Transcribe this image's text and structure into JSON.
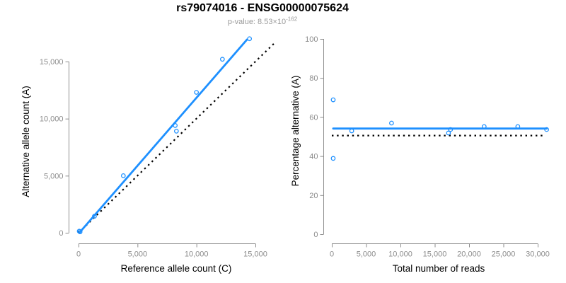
{
  "header": {
    "title": "rs79074016 - ENSG00000075624",
    "subtitle_prefix": "p-value: 8.53×10",
    "subtitle_exponent": "-162"
  },
  "colors": {
    "accent_blue": "#1E90FF",
    "line_black": "#000000",
    "axis_gray": "#8e8e8e",
    "tick_label_gray": "#8c8c8c",
    "axis_title_black": "#000000",
    "subtitle_gray": "#9a9a9a",
    "background": "#ffffff"
  },
  "chart_data": [
    {
      "type": "scatter",
      "title": "",
      "xlabel": "Reference allele count (C)",
      "ylabel": "Alternative allele count (A)",
      "xlim": [
        0,
        15000
      ],
      "ylim": [
        0,
        17000
      ],
      "grid": false,
      "legend": "none",
      "xticks": [
        0,
        5000,
        10000,
        15000
      ],
      "xtick_labels": [
        "0",
        "5,000",
        "10,000",
        "15,000"
      ],
      "yticks": [
        0,
        5000,
        10000,
        15000
      ],
      "ytick_labels": [
        "0",
        "5,000",
        "10,000",
        "15,000"
      ],
      "points": [
        [
          60,
          140
        ],
        [
          130,
          80
        ],
        [
          1350,
          1450
        ],
        [
          3800,
          5000
        ],
        [
          8200,
          9400
        ],
        [
          8300,
          8900
        ],
        [
          10000,
          12300
        ],
        [
          12200,
          15200
        ],
        [
          14500,
          17000
        ]
      ],
      "lines": [
        {
          "name": "identity-line",
          "x1": 0,
          "y1": 0,
          "x2": 16560,
          "y2": 16560,
          "style": "dotted",
          "color": "line_black"
        },
        {
          "name": "regression-line",
          "x1": 120,
          "y1": 60,
          "x2": 14280,
          "y2": 16920,
          "style": "solid",
          "color": "accent_blue"
        }
      ]
    },
    {
      "type": "scatter",
      "title": "",
      "xlabel": "Total number of reads",
      "ylabel": "Percentage alternative (A)",
      "xlim": [
        0,
        31500
      ],
      "ylim": [
        0,
        100
      ],
      "grid": false,
      "legend": "none",
      "xticks": [
        0,
        5000,
        10000,
        15000,
        20000,
        25000,
        30000
      ],
      "xtick_labels": [
        "0",
        "5,000",
        "10,000",
        "15,000",
        "20,000",
        "25,000",
        "30,000"
      ],
      "yticks": [
        0,
        20,
        40,
        60,
        80,
        100
      ],
      "ytick_labels": [
        "0",
        "20",
        "40",
        "60",
        "80",
        "100"
      ],
      "points": [
        [
          200,
          68.8
        ],
        [
          200,
          38.8
        ],
        [
          2900,
          52.9
        ],
        [
          8700,
          56.9
        ],
        [
          17000,
          51.8
        ],
        [
          17300,
          53.6
        ],
        [
          22200,
          55.1
        ],
        [
          27100,
          55.1
        ],
        [
          31300,
          53.6
        ]
      ],
      "lines": [
        {
          "name": "fifty-percent-line",
          "x1": 0,
          "y1": 50.5,
          "x2": 30900,
          "y2": 50.5,
          "style": "dotted",
          "color": "line_black"
        },
        {
          "name": "mean-line",
          "x1": 200,
          "y1": 54.1,
          "x2": 31300,
          "y2": 54.1,
          "style": "solid",
          "color": "accent_blue"
        }
      ]
    }
  ]
}
